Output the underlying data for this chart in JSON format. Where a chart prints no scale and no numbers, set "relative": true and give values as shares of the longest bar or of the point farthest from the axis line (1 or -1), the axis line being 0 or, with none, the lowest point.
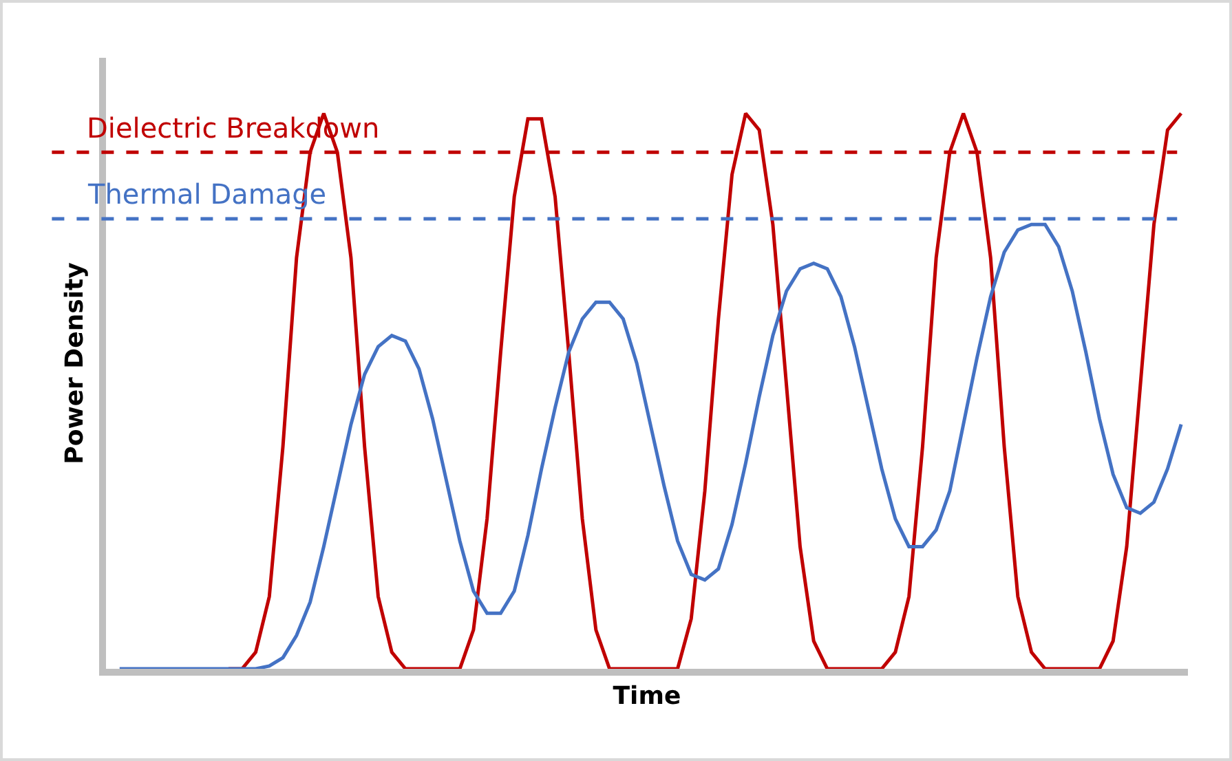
{
  "chart_data": {
    "type": "line",
    "relative": true,
    "xlabel": "Time",
    "ylabel": "Power Density",
    "categories": [
      null,
      null,
      null,
      null,
      null,
      null,
      null,
      null,
      null,
      null,
      null,
      null,
      null,
      null,
      null,
      null,
      null,
      null,
      null,
      null,
      null,
      null,
      null,
      null,
      null,
      null,
      null,
      null,
      null,
      null,
      null,
      null,
      null,
      null,
      null,
      null,
      null,
      null,
      null,
      null,
      null,
      null,
      null,
      null,
      null,
      null,
      null,
      null,
      null,
      null,
      null,
      null,
      null,
      null,
      null,
      null,
      null,
      null,
      null,
      null,
      null,
      null,
      null,
      null,
      null,
      null,
      null,
      null,
      null,
      null,
      null,
      null,
      null,
      null,
      null,
      null,
      null,
      null,
      null
    ],
    "series": [
      {
        "color": "#c00000",
        "values": [
          null,
          null,
          null,
          null,
          null,
          null,
          null,
          null,
          0,
          0,
          0.03,
          0.13,
          0.4,
          0.74,
          0.93,
          1,
          0.93,
          0.74,
          0.4,
          0.13,
          0.03,
          0,
          0,
          0,
          0,
          0,
          0.07,
          0.27,
          0.57,
          0.85,
          0.99,
          0.99,
          0.85,
          0.57,
          0.27,
          0.07,
          0,
          0,
          0,
          0,
          0,
          0,
          0.09,
          0.32,
          0.63,
          0.89,
          1,
          0.97,
          0.8,
          0.51,
          0.22,
          0.05,
          0,
          0,
          0,
          0,
          0,
          0.03,
          0.13,
          0.4,
          0.74,
          0.93,
          1,
          0.93,
          0.74,
          0.4,
          0.13,
          0.03,
          0,
          0,
          0,
          0,
          0,
          0.05,
          0.22,
          0.51,
          0.8,
          0.97,
          1
        ]
      },
      {
        "color": "#4472c4",
        "values": [
          0,
          0,
          0,
          0,
          0,
          0,
          0,
          0,
          0,
          0,
          0,
          0.005,
          0.02,
          0.06,
          0.12,
          0.22,
          0.33,
          0.44,
          0.53,
          0.58,
          0.6,
          0.59,
          0.54,
          0.45,
          0.34,
          0.23,
          0.14,
          0.1,
          0.1,
          0.14,
          0.24,
          0.36,
          0.47,
          0.57,
          0.63,
          0.66,
          0.66,
          0.63,
          0.55,
          0.44,
          0.33,
          0.23,
          0.17,
          0.16,
          0.18,
          0.26,
          0.37,
          0.49,
          0.6,
          0.68,
          0.72,
          0.73,
          0.72,
          0.67,
          0.58,
          0.47,
          0.36,
          0.27,
          0.22,
          0.22,
          0.25,
          0.32,
          0.44,
          0.56,
          0.67,
          0.75,
          0.79,
          0.8,
          0.8,
          0.76,
          0.68,
          0.57,
          0.45,
          0.35,
          0.29,
          0.28,
          0.3,
          0.36,
          0.44
        ]
      }
    ],
    "ref_lines": [
      {
        "axis": "y",
        "value": 0.93,
        "label": "Dielectric Breakdown",
        "color": "#c00000",
        "line_style": "dashed"
      },
      {
        "axis": "y",
        "value": 0.81,
        "label": "Thermal Damage",
        "color": "#4472c4",
        "line_style": "dashed"
      }
    ]
  }
}
